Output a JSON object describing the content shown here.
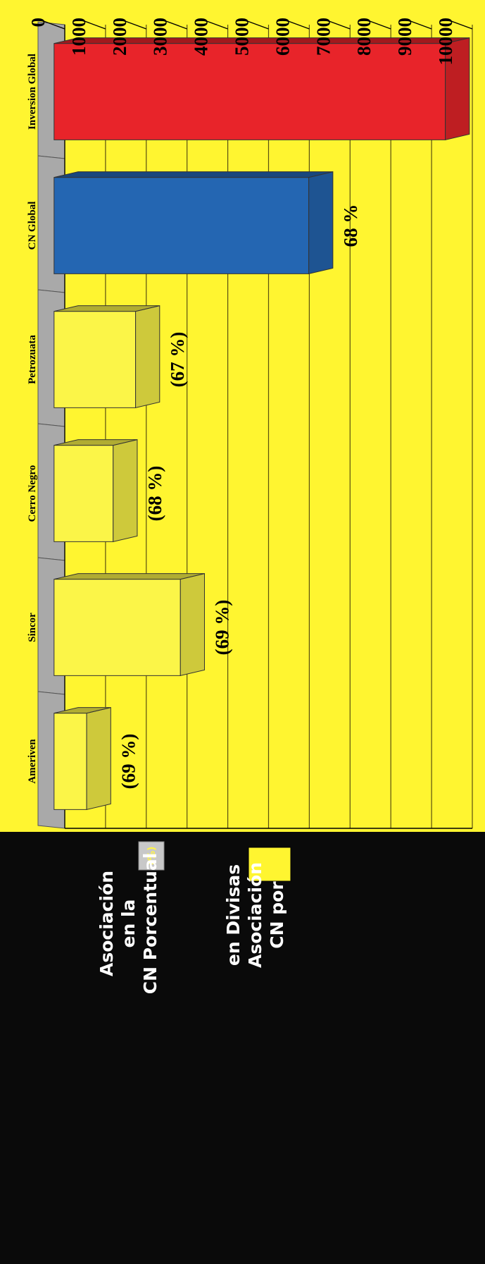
{
  "chart_data": {
    "type": "bar",
    "categories": [
      "Inversion Global",
      "CN Global",
      "Petrozuata",
      "Cerro Negro",
      "Sincor",
      "Ameriven"
    ],
    "values": [
      9600,
      6250,
      2000,
      1450,
      3100,
      800
    ],
    "percent_labels": [
      "",
      "68 %",
      "(67 %)",
      "(68 %)",
      "(69 %)",
      "(69 %)"
    ],
    "bar_colors": [
      "#e8242a",
      "#2466b2",
      "#fbf548",
      "#fbf548",
      "#fbf548",
      "#fbf548"
    ],
    "yticks": [
      "0",
      "1000",
      "2000",
      "3000",
      "4000",
      "5000",
      "6000",
      "7000",
      "8000",
      "9000",
      "10000"
    ],
    "ylim": [
      0,
      10000
    ],
    "grid": true,
    "background": "#fff530",
    "legend": {
      "placement": "right",
      "items": [
        {
          "swatch": "box",
          "color": "#fff530",
          "label_lines": [
            "CN por",
            "Asociación",
            "en Divisas"
          ]
        },
        {
          "swatch": "badge",
          "color": "#c8c8c8",
          "badge_text": "(%)",
          "label_lines": [
            "CN Porcentual",
            "en la",
            "Asociación"
          ]
        }
      ]
    }
  }
}
